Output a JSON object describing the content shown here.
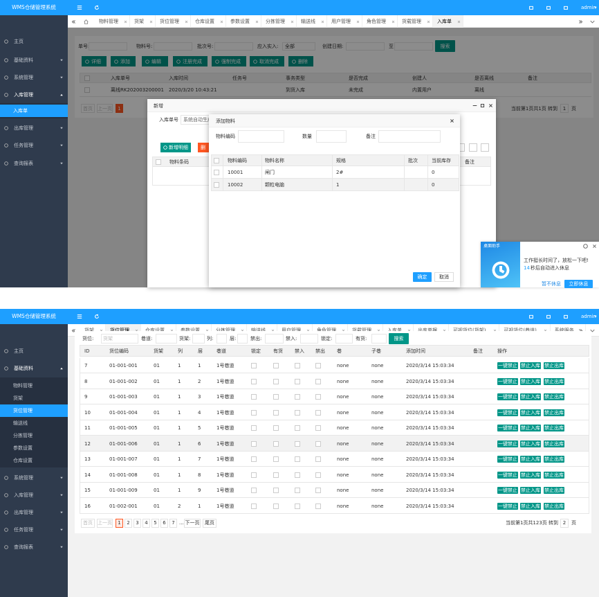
{
  "screen1": {
    "header": {
      "brand": "WMS仓储管理系统",
      "user": "admin"
    },
    "menu": [
      "主页",
      "基础资料",
      "系统管理",
      "入库管理",
      "入库单",
      "出库管理",
      "任务管理",
      "查询报表"
    ],
    "tabs": [
      "物料管理",
      "货架",
      "货位管理",
      "仓库设置",
      "参数设置",
      "分拣管理",
      "输送线",
      "用户管理",
      "角色管理",
      "货载管理",
      "入库单"
    ],
    "filters": {
      "labels": [
        "单号:",
        "物料号:",
        "批次号:",
        "应入实入:",
        "创建日期:",
        "至"
      ],
      "select": "全部",
      "search": "搜索"
    },
    "toolbar": [
      "详细",
      "添加",
      "编辑",
      "注册完成",
      "强制完成",
      "取消完成",
      "删除"
    ],
    "table": {
      "columns": [
        "入库单号",
        "入库时间",
        "任务号",
        "事务类型",
        "是否完成",
        "创建人",
        "是否离线",
        "备注"
      ],
      "rows": [
        [
          "离线RK202003200001",
          "2020/3/20 10:43:21",
          null,
          "到货入库",
          "未完成",
          "内置用户",
          "离线",
          null
        ]
      ]
    },
    "pager": {
      "first": "首页",
      "prev": "上一页",
      "page": "1",
      "info": "当前第1页共1页 转到",
      "goto": "1",
      "unit": "页"
    },
    "dialog_add": {
      "title": "新增",
      "label": "入库单号",
      "placeholder": "系统自动生成",
      "add_detail": "新增明细",
      "delete": "删",
      "columns": [
        "物料条码",
        "备注"
      ]
    },
    "dialog_material": {
      "title": "添加物料",
      "fields": [
        "物料编码",
        "数量",
        "备注"
      ],
      "columns": [
        "物料编码",
        "物料名称",
        "规格",
        "批次",
        "当前库存"
      ],
      "rows": [
        [
          "10001",
          "闸门",
          "2#",
          null,
          "0"
        ],
        [
          "10002",
          "颗粒电脑",
          "1",
          null,
          "0"
        ]
      ],
      "ok": "确定",
      "cancel": "取消"
    },
    "popup": {
      "title": "桌面助手",
      "message": "工作挺长时间了，放松一下吧!",
      "seconds": "14",
      "countdown": "秒后自动进入休息",
      "later": "暂不休息",
      "now": "立即休息"
    }
  },
  "screen2": {
    "header": {
      "brand": "WMS仓储管理系统",
      "user": "admin"
    },
    "menu": [
      "主页",
      "基础资料",
      "系统管理",
      "入库管理",
      "出库管理",
      "任务管理",
      "查询报表"
    ],
    "submenu": [
      "物料管理",
      "货架",
      "货位管理",
      "输送线",
      "分拣管理",
      "参数设置",
      "仓库设置"
    ],
    "tabs": [
      "货架",
      "货位管理",
      "仓库设置",
      "参数设置",
      "分拣管理",
      "输送线",
      "用户管理",
      "角色管理",
      "货载管理",
      "入库单",
      "出库单据",
      "可视货位(货架)",
      "可视货位(巷道)",
      "系统服务"
    ],
    "filters": {
      "labels": [
        "货位:",
        "巷道:",
        "货架:",
        "列:",
        "层:",
        "禁出:",
        "禁入:",
        "锁定:",
        "有货:"
      ],
      "placeholder": "货架",
      "search": "搜索"
    },
    "table": {
      "columns": [
        "ID",
        "货位编码",
        "货架",
        "列",
        "层",
        "巷道",
        "锁定",
        "有货",
        "禁入",
        "禁出",
        "巷",
        "子巷",
        "添加时间",
        "备注",
        "操作"
      ],
      "actions": [
        "一键禁止",
        "禁止入库",
        "禁止出库"
      ],
      "rows": [
        [
          "7",
          "01-001-001",
          "01",
          "1",
          "1",
          "1号巷道",
          null,
          null,
          null,
          null,
          "none",
          "none",
          "2020/3/14 15:03:34",
          null
        ],
        [
          "8",
          "01-001-002",
          "01",
          "1",
          "2",
          "1号巷道",
          null,
          null,
          null,
          null,
          "none",
          "none",
          "2020/3/14 15:03:34",
          null
        ],
        [
          "9",
          "01-001-003",
          "01",
          "1",
          "3",
          "1号巷道",
          null,
          null,
          null,
          null,
          "none",
          "none",
          "2020/3/14 15:03:34",
          null
        ],
        [
          "10",
          "01-001-004",
          "01",
          "1",
          "4",
          "1号巷道",
          null,
          null,
          null,
          null,
          "none",
          "none",
          "2020/3/14 15:03:34",
          null
        ],
        [
          "11",
          "01-001-005",
          "01",
          "1",
          "5",
          "1号巷道",
          null,
          null,
          null,
          null,
          "none",
          "none",
          "2020/3/14 15:03:34",
          null
        ],
        [
          "12",
          "01-001-006",
          "01",
          "1",
          "6",
          "1号巷道",
          null,
          null,
          null,
          null,
          "none",
          "none",
          "2020/3/14 15:03:34",
          null
        ],
        [
          "13",
          "01-001-007",
          "01",
          "1",
          "7",
          "1号巷道",
          null,
          null,
          null,
          null,
          "none",
          "none",
          "2020/3/14 15:03:34",
          null
        ],
        [
          "14",
          "01-001-008",
          "01",
          "1",
          "8",
          "1号巷道",
          null,
          null,
          null,
          null,
          "none",
          "none",
          "2020/3/14 15:03:34",
          null
        ],
        [
          "15",
          "01-001-009",
          "01",
          "1",
          "9",
          "1号巷道",
          null,
          null,
          null,
          null,
          "none",
          "none",
          "2020/3/14 15:03:34",
          null
        ],
        [
          "16",
          "01-002-001",
          "01",
          "2",
          "1",
          "1号巷道",
          null,
          null,
          null,
          null,
          "none",
          "none",
          "2020/3/14 15:03:34",
          null
        ]
      ]
    },
    "pager": {
      "first": "首页",
      "prev": "上一页",
      "pages": [
        "1",
        "2",
        "3",
        "4",
        "5",
        "6",
        "7"
      ],
      "ellipsis": "...",
      "next": "下一页",
      "last": "尾页",
      "info": "当前第1页共123页 转到",
      "goto": "2",
      "unit": "页"
    }
  }
}
